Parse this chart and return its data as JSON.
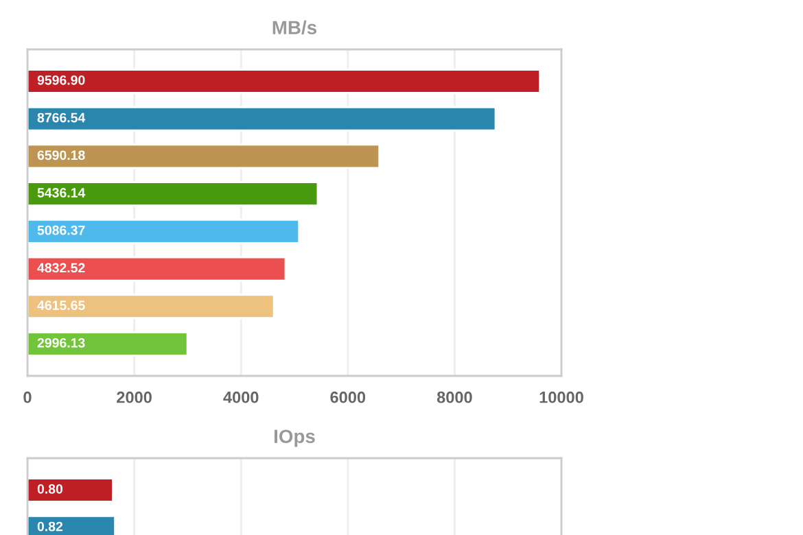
{
  "chart_data": [
    {
      "type": "bar",
      "orientation": "horizontal",
      "title": "MB/s",
      "categories": [
        null,
        null,
        null,
        null,
        null,
        null,
        null,
        null
      ],
      "values": [
        9596.9,
        8766.54,
        6590.18,
        5436.14,
        5086.37,
        4832.52,
        4615.65,
        2996.13
      ],
      "colors": [
        "#be2025",
        "#2b86ad",
        "#be9452",
        "#4a9a10",
        "#4fb9eb",
        "#eb4f4f",
        "#edc17e",
        "#72c43a"
      ],
      "value_labels": [
        "9596.90",
        "8766.54",
        "6590.18",
        "5436.14",
        "5086.37",
        "4832.52",
        "4615.65",
        "2996.13"
      ],
      "xlim": [
        0,
        10000
      ],
      "xticks": [
        0,
        2000,
        4000,
        6000,
        8000,
        10000
      ],
      "grid": "x",
      "tick_labels": "x"
    },
    {
      "type": "bar",
      "orientation": "horizontal",
      "title": "IOps",
      "categories": [
        null,
        null
      ],
      "values": [
        0.8,
        0.82
      ],
      "colors": [
        "#be2025",
        "#2b86ad"
      ],
      "value_labels": [
        "0.80",
        "0.82"
      ],
      "xlim": [
        0,
        5
      ],
      "xticks": [
        {
          "value": 0,
          "label": null
        },
        {
          "value": 1,
          "label": null
        },
        {
          "value": 2,
          "label": null
        },
        {
          "value": 3,
          "label": null
        },
        {
          "value": 4,
          "label": null
        },
        {
          "value": 5,
          "label": null
        }
      ],
      "grid": "x",
      "tick_labels": false
    }
  ]
}
